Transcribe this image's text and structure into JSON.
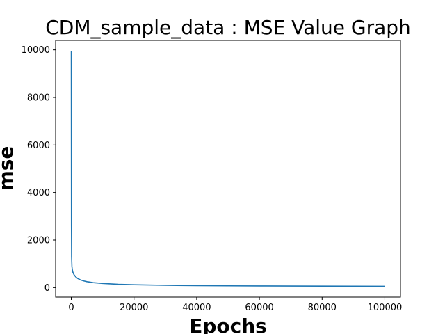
{
  "chart_data": {
    "type": "line",
    "title": "CDM_sample_data : MSE Value Graph",
    "xlabel": "Epochs",
    "ylabel": "mse",
    "xlim": [
      -5000,
      105000
    ],
    "ylim": [
      -400,
      10400
    ],
    "xticks": [
      0,
      20000,
      40000,
      60000,
      80000,
      100000
    ],
    "yticks": [
      0,
      2000,
      4000,
      6000,
      8000,
      10000
    ],
    "grid": false,
    "series": [
      {
        "color": "#1f77b4",
        "x": [
          0,
          50,
          100,
          200,
          300,
          500,
          800,
          1000,
          1500,
          2000,
          3000,
          4000,
          5000,
          7000,
          10000,
          15000,
          20000,
          30000,
          40000,
          50000,
          60000,
          70000,
          80000,
          90000,
          100000
        ],
        "y": [
          9950,
          2600,
          1300,
          900,
          780,
          650,
          560,
          520,
          440,
          390,
          320,
          280,
          250,
          210,
          175,
          140,
          120,
          98,
          85,
          76,
          70,
          66,
          62,
          59,
          56
        ]
      }
    ]
  }
}
